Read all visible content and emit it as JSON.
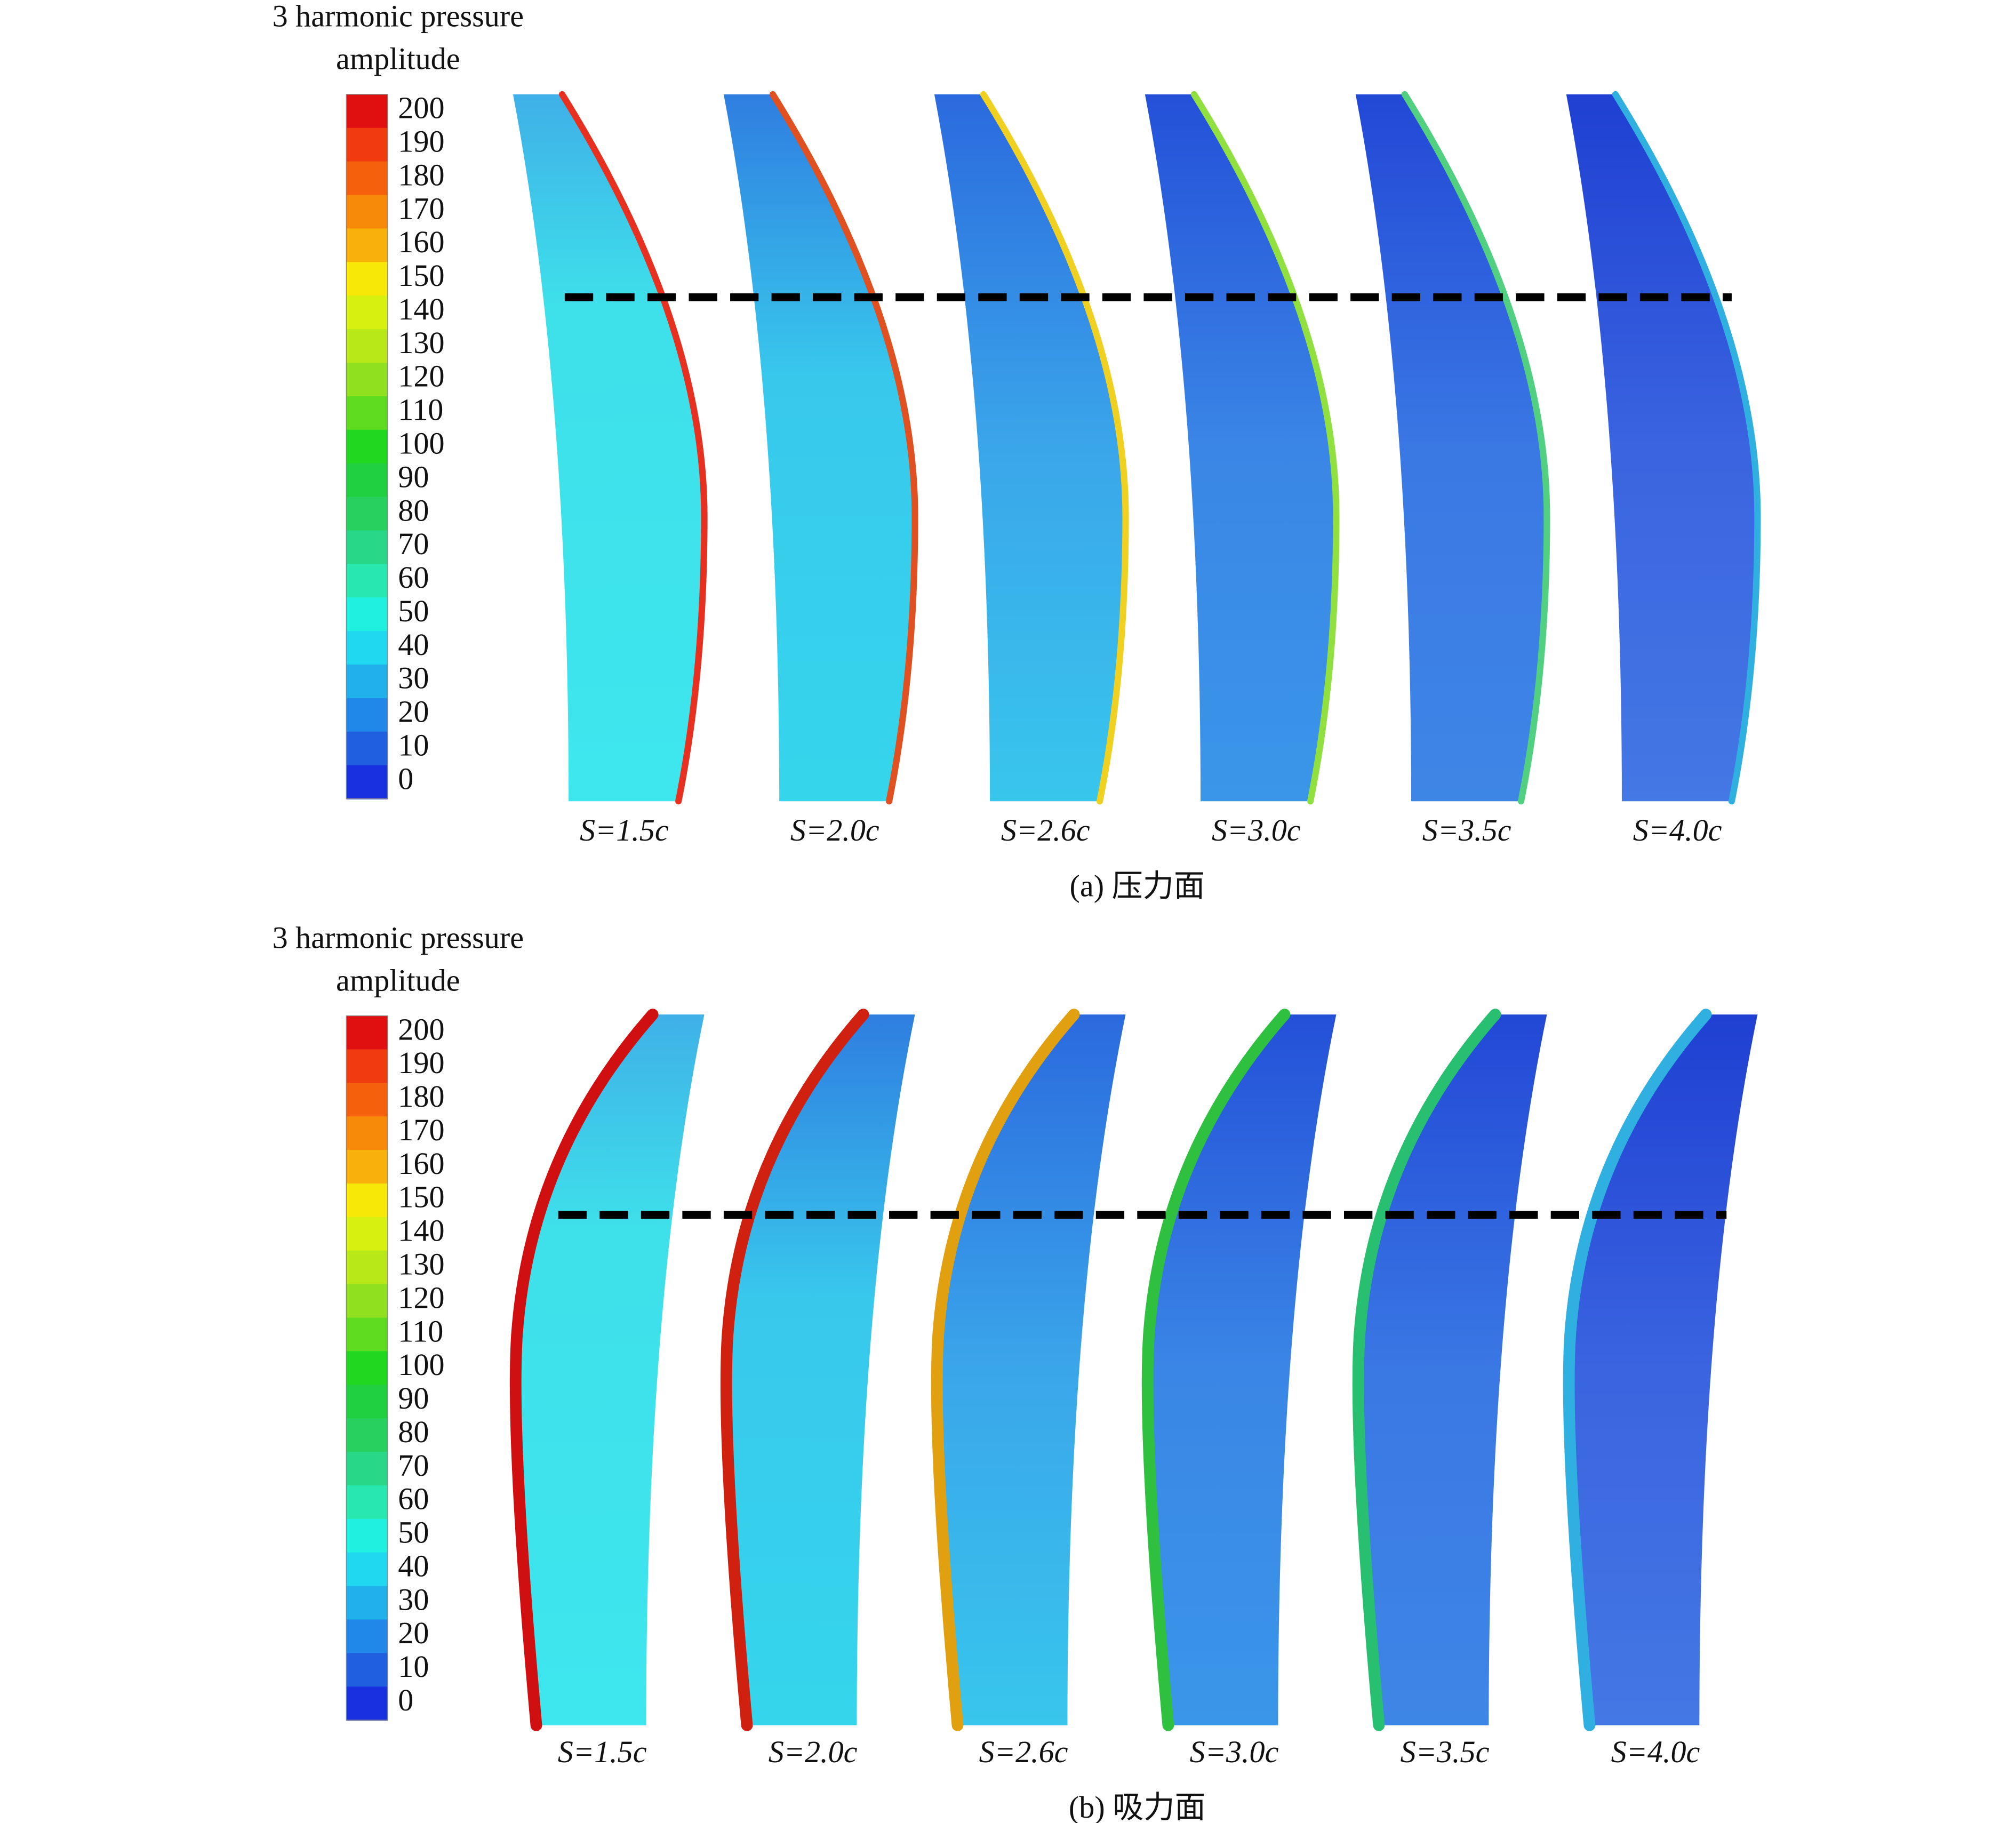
{
  "panels": [
    {
      "colorbar": {
        "title_lines": [
          "3 harmonic pressure",
          "amplitude"
        ],
        "ticks": [
          200,
          190,
          180,
          170,
          160,
          150,
          140,
          130,
          120,
          110,
          100,
          90,
          80,
          70,
          60,
          50,
          40,
          30,
          20,
          10,
          0
        ]
      },
      "blade_labels": [
        "S=1.5c",
        "S=2.0c",
        "S=2.6c",
        "S=3.0c",
        "S=3.5c",
        "S=4.0c"
      ],
      "caption": "(a) 压力面"
    },
    {
      "colorbar": {
        "title_lines": [
          "3 harmonic pressure",
          "amplitude"
        ],
        "ticks": [
          200,
          190,
          180,
          170,
          160,
          150,
          140,
          130,
          120,
          110,
          100,
          90,
          80,
          70,
          60,
          50,
          40,
          30,
          20,
          10,
          0
        ]
      },
      "blade_labels": [
        "S=1.5c",
        "S=2.0c",
        "S=2.6c",
        "S=3.0c",
        "S=3.5c",
        "S=4.0c"
      ],
      "caption": "(b) 吸力面"
    }
  ]
}
